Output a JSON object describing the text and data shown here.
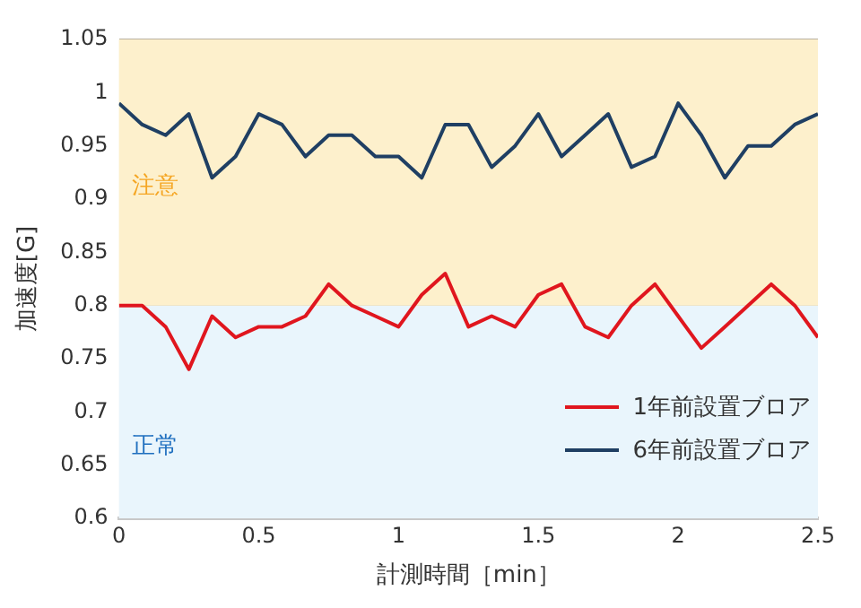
{
  "chart_data": {
    "type": "line",
    "xlabel": "計測時間［min］",
    "ylabel": "加速度[G]",
    "x": [
      0,
      0.083,
      0.167,
      0.25,
      0.333,
      0.417,
      0.5,
      0.583,
      0.667,
      0.75,
      0.833,
      0.917,
      1,
      1.083,
      1.167,
      1.25,
      1.333,
      1.417,
      1.5,
      1.583,
      1.667,
      1.75,
      1.833,
      1.917,
      2,
      2.083,
      2.167,
      2.25,
      2.333,
      2.417,
      2.5
    ],
    "series": [
      {
        "name": "1年前設置ブロア",
        "color": "#e0161e",
        "values": [
          0.8,
          0.8,
          0.78,
          0.74,
          0.79,
          0.77,
          0.78,
          0.78,
          0.79,
          0.82,
          0.8,
          0.79,
          0.78,
          0.81,
          0.83,
          0.78,
          0.79,
          0.78,
          0.81,
          0.82,
          0.78,
          0.77,
          0.8,
          0.82,
          0.79,
          0.76,
          0.78,
          0.8,
          0.82,
          0.8,
          0.77
        ]
      },
      {
        "name": "6年前設置ブロア",
        "color": "#1f3f63",
        "values": [
          0.99,
          0.97,
          0.96,
          0.98,
          0.92,
          0.94,
          0.98,
          0.97,
          0.94,
          0.96,
          0.96,
          0.94,
          0.94,
          0.92,
          0.97,
          0.97,
          0.93,
          0.95,
          0.98,
          0.94,
          0.96,
          0.98,
          0.93,
          0.94,
          0.99,
          0.96,
          0.92,
          0.95,
          0.95,
          0.97,
          0.98
        ]
      }
    ],
    "xlim": [
      0,
      2.5
    ],
    "xticks": [
      0,
      0.5,
      1,
      1.5,
      2,
      2.5
    ],
    "ylim": [
      0.6,
      1.05
    ],
    "yticks": [
      {
        "value": 0.6,
        "label": "0.6"
      },
      0.65,
      {
        "value": 0.7,
        "label": "0.7"
      },
      0.75,
      {
        "value": 0.8,
        "label": "0.8"
      },
      0.85,
      {
        "value": 0.9,
        "label": "0.9"
      },
      0.95,
      {
        "value": 1,
        "label": "1"
      },
      {
        "value": 1.05,
        "label": "1.05"
      }
    ],
    "bands": [
      {
        "axis": "y",
        "from": 0.6,
        "to": 0.8,
        "label": "正常",
        "color": "#e9f5fc"
      },
      {
        "axis": "y",
        "from": 0.8,
        "to": 1.05,
        "label": "注意",
        "color": "#fdf0cc"
      }
    ],
    "grid": "y",
    "legend": "bottom right",
    "marker": "none",
    "line_style": "solid"
  }
}
